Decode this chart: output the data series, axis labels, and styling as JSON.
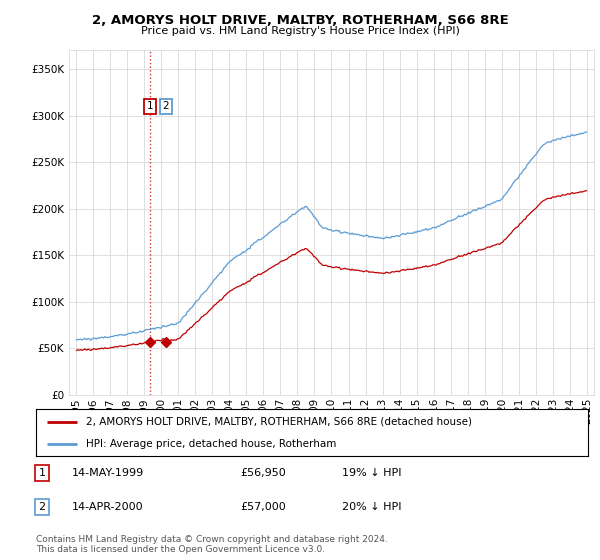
{
  "title": "2, AMORYS HOLT DRIVE, MALTBY, ROTHERHAM, S66 8RE",
  "subtitle": "Price paid vs. HM Land Registry's House Price Index (HPI)",
  "legend_line1": "2, AMORYS HOLT DRIVE, MALTBY, ROTHERHAM, S66 8RE (detached house)",
  "legend_line2": "HPI: Average price, detached house, Rotherham",
  "transaction1_date": "14-MAY-1999",
  "transaction1_price": "£56,950",
  "transaction1_hpi": "19% ↓ HPI",
  "transaction2_date": "14-APR-2000",
  "transaction2_price": "£57,000",
  "transaction2_hpi": "20% ↓ HPI",
  "footer": "Contains HM Land Registry data © Crown copyright and database right 2024.\nThis data is licensed under the Open Government Licence v3.0.",
  "ylim": [
    0,
    370000
  ],
  "yticks": [
    0,
    50000,
    100000,
    150000,
    200000,
    250000,
    300000,
    350000
  ],
  "hpi_color": "#5b9bd5",
  "price_color": "#c00000",
  "vline1_color": "#c00000",
  "vline2_color": "#bdd7ee",
  "grid_color": "#d9d9d9",
  "t1_x": 1999.37,
  "t2_x": 2000.29,
  "price_t1": 56950,
  "price_t2": 57000,
  "xmin": 1994.6,
  "xmax": 2025.4
}
